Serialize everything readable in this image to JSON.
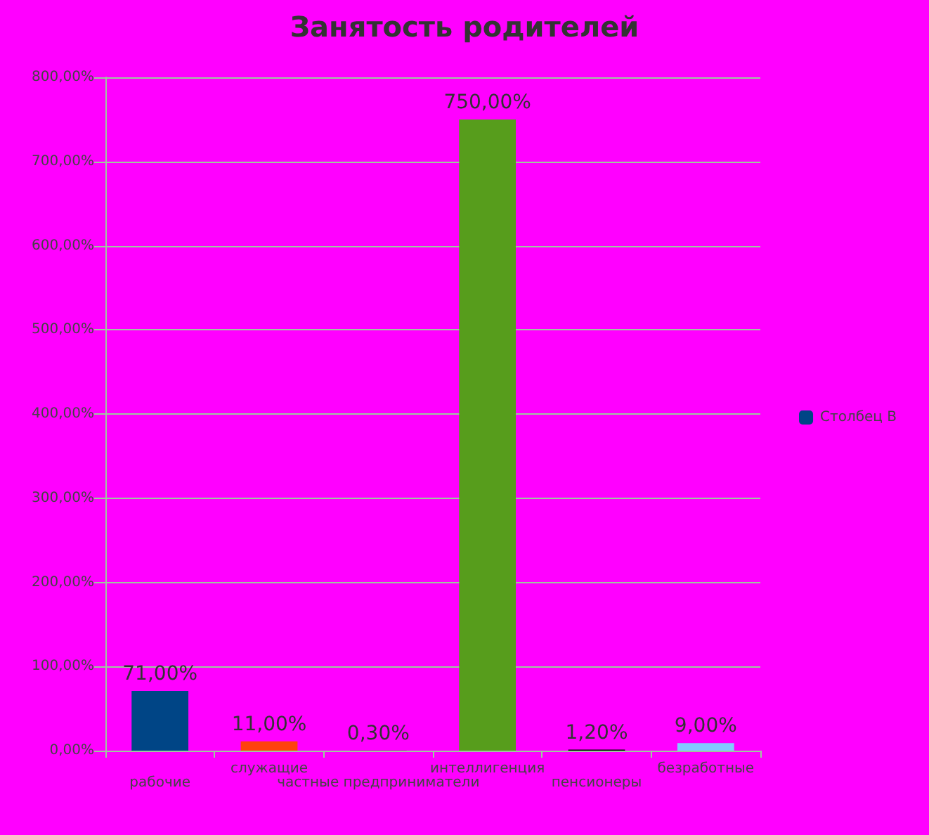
{
  "chart_data": {
    "type": "bar",
    "title": "Занятость родителей",
    "categories": [
      "рабочие",
      "служащие",
      "частные предприниматели",
      "интеллигенция",
      "пенсионеры",
      "безработные"
    ],
    "series": [
      {
        "name": "Столбец B",
        "color": "#004586",
        "colors": [
          "#004586",
          "#ff420e",
          "#7e0060",
          "#579d1c",
          "#000000",
          "#83caff"
        ],
        "values": [
          71,
          11,
          0.3,
          750,
          1.2,
          9
        ],
        "value_labels": [
          "71,00%",
          "11,00%",
          "0,30%",
          "750,00%",
          "1,20%",
          "9,00%"
        ]
      }
    ],
    "ylim": [
      0,
      800
    ],
    "yticks": [
      {
        "value": 0,
        "label": "0,00%"
      },
      {
        "value": 100,
        "label": "100,00%"
      },
      {
        "value": 200,
        "label": "200,00%"
      },
      {
        "value": 300,
        "label": "300,00%"
      },
      {
        "value": 400,
        "label": "400,00%"
      },
      {
        "value": 500,
        "label": "500,00%"
      },
      {
        "value": 600,
        "label": "600,00%"
      },
      {
        "value": 700,
        "label": "700,00%"
      },
      {
        "value": 800,
        "label": "800,00%"
      }
    ],
    "grid": "y",
    "legend": "right"
  }
}
